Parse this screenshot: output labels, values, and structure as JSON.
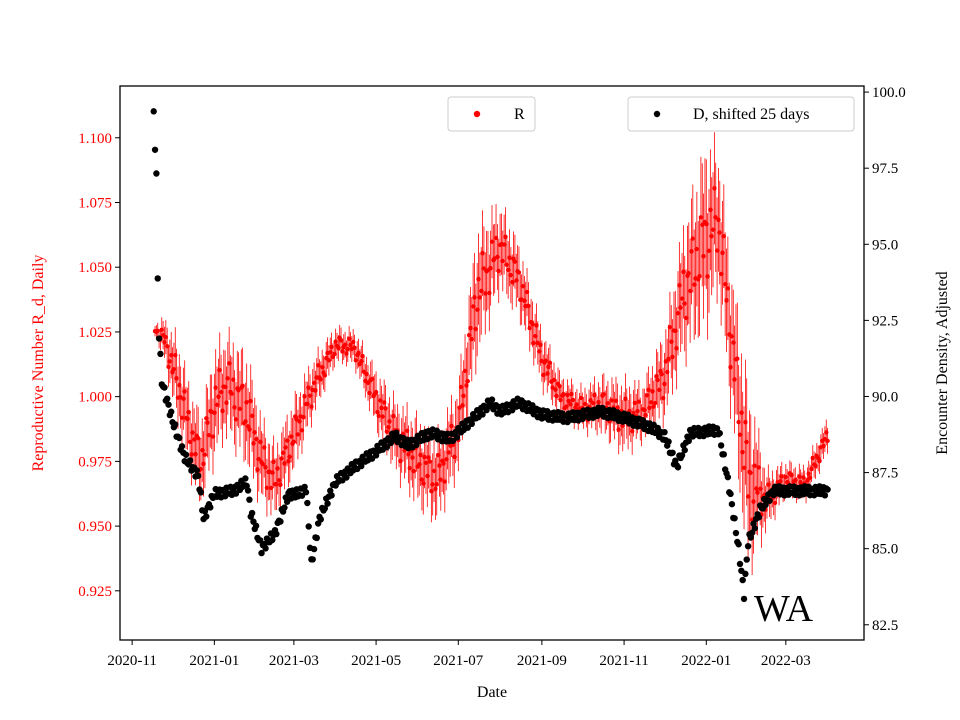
{
  "chart_data": {
    "type": "scatter",
    "xlabel": "Date",
    "ylabel_left": "Reproductive Number R_d, Daily",
    "ylabel_right": "Encounter Density, Adjusted",
    "annotation": "WA",
    "x_range": [
      "2020-10-23",
      "2022-04-28"
    ],
    "ylim_left": [
      0.906,
      1.12
    ],
    "ylim_right": [
      82.0,
      100.2
    ],
    "x_ticks": [
      "2020-11",
      "2021-01",
      "2021-03",
      "2021-05",
      "2021-07",
      "2021-09",
      "2021-11",
      "2022-01",
      "2022-03"
    ],
    "y_ticks_left": [
      "0.925",
      "0.950",
      "0.975",
      "1.000",
      "1.025",
      "1.050",
      "1.075",
      "1.100"
    ],
    "y_ticks_right": [
      "82.5",
      "85.0",
      "87.5",
      "90.0",
      "92.5",
      "95.0",
      "97.5",
      "100.0"
    ],
    "colors": {
      "R": "#ff0000",
      "D": "#000000",
      "left_axis": "#ff0000",
      "right_axis": "#000000"
    },
    "legend": [
      {
        "label": "R",
        "color": "#ff0000",
        "position": "top-center"
      },
      {
        "label": "D, shifted 25 days",
        "color": "#000000",
        "position": "top-right"
      }
    ],
    "series": [
      {
        "name": "R",
        "axis": "left",
        "marker": "dot-with-error-bars",
        "note": "smoothed daily R with oscillating error band (band = approx half-width)",
        "keypoints": [
          [
            "2020-11-18",
            1.026,
            0.002
          ],
          [
            "2020-11-25",
            1.022,
            0.006
          ],
          [
            "2020-12-05",
            1.005,
            0.012
          ],
          [
            "2020-12-15",
            0.985,
            0.012
          ],
          [
            "2020-12-22",
            0.975,
            0.012
          ],
          [
            "2021-01-01",
            0.997,
            0.015
          ],
          [
            "2021-01-10",
            1.005,
            0.014
          ],
          [
            "2021-01-25",
            0.995,
            0.015
          ],
          [
            "2021-02-05",
            0.975,
            0.012
          ],
          [
            "2021-02-15",
            0.967,
            0.01
          ],
          [
            "2021-03-01",
            0.985,
            0.01
          ],
          [
            "2021-03-15",
            1.003,
            0.008
          ],
          [
            "2021-04-01",
            1.02,
            0.005
          ],
          [
            "2021-04-15",
            1.019,
            0.005
          ],
          [
            "2021-05-01",
            0.999,
            0.008
          ],
          [
            "2021-05-15",
            0.985,
            0.01
          ],
          [
            "2021-06-01",
            0.975,
            0.012
          ],
          [
            "2021-06-15",
            0.968,
            0.012
          ],
          [
            "2021-07-01",
            0.988,
            0.012
          ],
          [
            "2021-07-15",
            1.04,
            0.018
          ],
          [
            "2021-08-01",
            1.058,
            0.012
          ],
          [
            "2021-08-15",
            1.045,
            0.01
          ],
          [
            "2021-09-01",
            1.015,
            0.008
          ],
          [
            "2021-09-15",
            1.0,
            0.006
          ],
          [
            "2021-10-01",
            0.995,
            0.006
          ],
          [
            "2021-10-15",
            0.997,
            0.008
          ],
          [
            "2021-11-01",
            0.992,
            0.01
          ],
          [
            "2021-11-15",
            0.994,
            0.008
          ],
          [
            "2021-12-01",
            1.008,
            0.012
          ],
          [
            "2021-12-15",
            1.04,
            0.018
          ],
          [
            "2022-01-01",
            1.062,
            0.025
          ],
          [
            "2022-01-10",
            1.068,
            0.02
          ],
          [
            "2022-01-20",
            1.02,
            0.02
          ],
          [
            "2022-02-01",
            0.968,
            0.025
          ],
          [
            "2022-02-15",
            0.96,
            0.008
          ],
          [
            "2022-03-01",
            0.968,
            0.005
          ],
          [
            "2022-03-15",
            0.966,
            0.005
          ],
          [
            "2022-04-01",
            0.985,
            0.005
          ]
        ]
      },
      {
        "name": "D, shifted 25 days",
        "axis": "right",
        "marker": "dot",
        "keypoints": [
          [
            "2020-11-17",
            99.3
          ],
          [
            "2020-11-19",
            97.2
          ],
          [
            "2020-11-20",
            93.9
          ],
          [
            "2020-11-21",
            92.0
          ],
          [
            "2020-11-23",
            90.5
          ],
          [
            "2020-12-01",
            89.2
          ],
          [
            "2020-12-10",
            88.0
          ],
          [
            "2020-12-20",
            87.4
          ],
          [
            "2020-12-24",
            86.0
          ],
          [
            "2021-01-01",
            86.8
          ],
          [
            "2021-01-15",
            86.9
          ],
          [
            "2021-01-25",
            87.2
          ],
          [
            "2021-01-28",
            86.2
          ],
          [
            "2021-02-05",
            85.0
          ],
          [
            "2021-02-15",
            85.5
          ],
          [
            "2021-02-25",
            86.8
          ],
          [
            "2021-03-05",
            86.8
          ],
          [
            "2021-03-10",
            87.0
          ],
          [
            "2021-03-14",
            84.5
          ],
          [
            "2021-03-20",
            86.0
          ],
          [
            "2021-04-01",
            87.2
          ],
          [
            "2021-04-15",
            87.7
          ],
          [
            "2021-05-01",
            88.2
          ],
          [
            "2021-05-15",
            88.7
          ],
          [
            "2021-05-25",
            88.4
          ],
          [
            "2021-06-10",
            88.8
          ],
          [
            "2021-06-25",
            88.6
          ],
          [
            "2021-07-10",
            89.2
          ],
          [
            "2021-07-25",
            89.8
          ],
          [
            "2021-08-01",
            89.5
          ],
          [
            "2021-08-15",
            89.8
          ],
          [
            "2021-09-01",
            89.4
          ],
          [
            "2021-09-20",
            89.3
          ],
          [
            "2021-10-15",
            89.5
          ],
          [
            "2021-11-01",
            89.3
          ],
          [
            "2021-11-20",
            89.0
          ],
          [
            "2021-12-01",
            88.7
          ],
          [
            "2021-12-10",
            87.7
          ],
          [
            "2021-12-20",
            88.8
          ],
          [
            "2022-01-10",
            88.9
          ],
          [
            "2022-01-18",
            87.0
          ],
          [
            "2022-01-25",
            85.0
          ],
          [
            "2022-01-29",
            83.5
          ],
          [
            "2022-02-01",
            85.2
          ],
          [
            "2022-02-10",
            86.3
          ],
          [
            "2022-02-20",
            86.9
          ],
          [
            "2022-03-15",
            86.9
          ],
          [
            "2022-04-01",
            86.9
          ]
        ]
      }
    ]
  }
}
